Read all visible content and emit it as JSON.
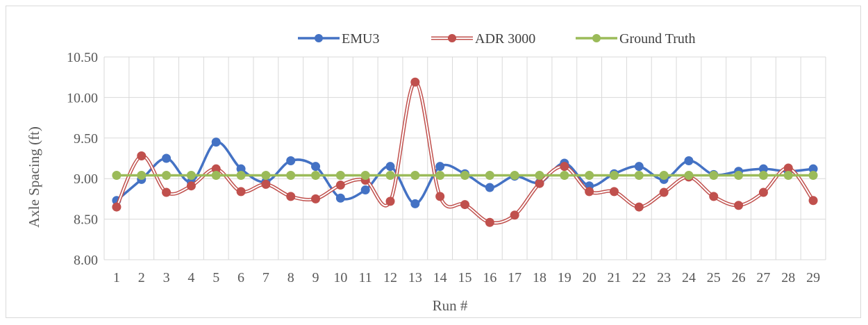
{
  "chart_data": {
    "type": "line",
    "title": "",
    "xlabel": "Run #",
    "ylabel": "Axle Spacing (ft)",
    "ylim": [
      8.0,
      10.5
    ],
    "yticks": [
      "8.00",
      "8.50",
      "9.00",
      "9.50",
      "10.00",
      "10.50"
    ],
    "grid": true,
    "legend_position": "top",
    "categories": [
      "1",
      "2",
      "3",
      "4",
      "5",
      "6",
      "7",
      "8",
      "9",
      "10",
      "11",
      "12",
      "13",
      "14",
      "15",
      "16",
      "17",
      "18",
      "19",
      "20",
      "21",
      "22",
      "23",
      "24",
      "25",
      "26",
      "27",
      "28",
      "29"
    ],
    "series": [
      {
        "name": "EMU3",
        "color": "#4472c4",
        "style": "smooth-solid",
        "values": [
          8.73,
          8.99,
          9.25,
          8.96,
          9.45,
          9.12,
          8.96,
          9.22,
          9.15,
          8.76,
          8.86,
          9.15,
          8.69,
          9.15,
          9.06,
          8.89,
          9.03,
          8.95,
          9.19,
          8.91,
          9.06,
          9.15,
          8.99,
          9.22,
          9.05,
          9.09,
          9.12,
          9.09,
          9.12
        ]
      },
      {
        "name": "ADR 3000",
        "color": "#c0504d",
        "style": "smooth-double",
        "values": [
          8.65,
          9.28,
          8.83,
          8.91,
          9.12,
          8.84,
          8.93,
          8.78,
          8.75,
          8.92,
          8.98,
          8.72,
          10.19,
          8.78,
          8.68,
          8.46,
          8.55,
          8.94,
          9.15,
          8.84,
          8.84,
          8.65,
          8.83,
          9.02,
          8.78,
          8.67,
          8.83,
          9.13,
          8.73
        ]
      },
      {
        "name": "Ground Truth",
        "color": "#9bbb59",
        "style": "solid",
        "values": [
          9.04,
          9.04,
          9.04,
          9.04,
          9.04,
          9.04,
          9.04,
          9.04,
          9.04,
          9.04,
          9.04,
          9.04,
          9.04,
          9.04,
          9.04,
          9.04,
          9.04,
          9.04,
          9.04,
          9.04,
          9.04,
          9.04,
          9.04,
          9.04,
          9.04,
          9.04,
          9.04,
          9.04,
          9.04
        ]
      }
    ]
  }
}
